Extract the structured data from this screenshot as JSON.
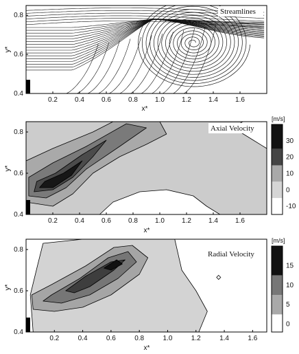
{
  "chart_data": [
    {
      "type": "streamlines",
      "title": "Streamlines",
      "xlabel": "x*",
      "ylabel": "y*",
      "xlim": [
        0.0,
        1.8
      ],
      "ylim": [
        0.4,
        0.85
      ],
      "xticks": [
        "0.2",
        "0.4",
        "0.6",
        "0.8",
        "1.0",
        "1.2",
        "1.4",
        "1.6"
      ],
      "yticks": [
        "0.4",
        "0.6",
        "0.8"
      ],
      "vortex_center": [
        1.25,
        0.66
      ],
      "jet_exit": {
        "x": 0.0,
        "y0": 0.4,
        "y1": 0.47
      }
    },
    {
      "type": "contour",
      "title": "Axial Velocity",
      "xlabel": "x*",
      "ylabel": "y*",
      "xlim": [
        0.0,
        1.8
      ],
      "ylim": [
        0.4,
        0.85
      ],
      "xticks": [
        "0.2",
        "0.4",
        "0.6",
        "0.8",
        "1.0",
        "1.2",
        "1.4",
        "1.6"
      ],
      "yticks": [
        "0.4",
        "0.6",
        "0.8"
      ],
      "colorbar": {
        "unit": "[m/s]",
        "ticks": [
          "30",
          "20",
          "10",
          "0",
          "-10"
        ],
        "range": [
          -15,
          40
        ]
      },
      "levels": [
        {
          "value": 0,
          "shade": "#cccccc",
          "points": [
            [
              0.0,
              0.4
            ],
            [
              0.0,
              0.85
            ],
            [
              1.8,
              0.85
            ],
            [
              1.8,
              0.4
            ]
          ]
        },
        {
          "value": 5,
          "shade": "#a9a9a9",
          "points": [
            [
              0.0,
              0.46
            ],
            [
              0.0,
              0.66
            ],
            [
              0.2,
              0.72
            ],
            [
              0.5,
              0.8
            ],
            [
              0.65,
              0.85
            ],
            [
              1.0,
              0.85
            ],
            [
              1.05,
              0.79
            ],
            [
              0.9,
              0.74
            ],
            [
              0.7,
              0.68
            ],
            [
              0.5,
              0.6
            ],
            [
              0.35,
              0.5
            ],
            [
              0.2,
              0.44
            ]
          ]
        },
        {
          "value": 15,
          "shade": "#7a7a7a",
          "points": [
            [
              0.02,
              0.49
            ],
            [
              0.02,
              0.58
            ],
            [
              0.2,
              0.65
            ],
            [
              0.45,
              0.73
            ],
            [
              0.75,
              0.84
            ],
            [
              0.9,
              0.82
            ],
            [
              0.7,
              0.73
            ],
            [
              0.45,
              0.62
            ],
            [
              0.3,
              0.53
            ],
            [
              0.15,
              0.48
            ]
          ]
        },
        {
          "value": 25,
          "shade": "#4b4b4b",
          "points": [
            [
              0.06,
              0.51
            ],
            [
              0.08,
              0.56
            ],
            [
              0.22,
              0.6
            ],
            [
              0.42,
              0.69
            ],
            [
              0.6,
              0.76
            ],
            [
              0.5,
              0.68
            ],
            [
              0.35,
              0.58
            ],
            [
              0.2,
              0.52
            ]
          ]
        },
        {
          "value": 35,
          "shade": "#171717",
          "points": [
            [
              0.1,
              0.53
            ],
            [
              0.14,
              0.56
            ],
            [
              0.28,
              0.6
            ],
            [
              0.42,
              0.66
            ],
            [
              0.34,
              0.59
            ],
            [
              0.2,
              0.53
            ]
          ]
        },
        {
          "value": -5,
          "shade": "#ffffff",
          "points": [
            [
              0.55,
              0.4
            ],
            [
              0.65,
              0.46
            ],
            [
              0.85,
              0.51
            ],
            [
              1.05,
              0.52
            ],
            [
              1.25,
              0.49
            ],
            [
              1.35,
              0.44
            ],
            [
              1.45,
              0.4
            ]
          ]
        },
        {
          "value": -5,
          "shade": "#ffffff",
          "points": [
            [
              1.55,
              0.82
            ],
            [
              1.62,
              0.85
            ],
            [
              1.8,
              0.85
            ],
            [
              1.8,
              0.72
            ],
            [
              1.7,
              0.76
            ]
          ]
        }
      ]
    },
    {
      "type": "contour",
      "title": "Radial Velocity",
      "xlabel": "x*",
      "ylabel": "y*",
      "xlim": [
        0.0,
        1.7
      ],
      "ylim": [
        0.4,
        0.85
      ],
      "xticks": [
        "0.2",
        "0.4",
        "0.6",
        "0.8",
        "1.0",
        "1.2",
        "1.4",
        "1.6"
      ],
      "yticks": [
        "0.4",
        "0.6",
        "0.8"
      ],
      "colorbar": {
        "unit": "[m/s]",
        "ticks": [
          "15",
          "10",
          "5",
          "0"
        ],
        "range": [
          -2,
          20
        ]
      },
      "levels": [
        {
          "value": 0,
          "shade": "#ffffff",
          "points": [
            [
              0.0,
              0.4
            ],
            [
              0.0,
              0.85
            ],
            [
              1.7,
              0.85
            ],
            [
              1.7,
              0.4
            ]
          ]
        },
        {
          "value": 2,
          "shade": "#d3d3d3",
          "points": [
            [
              0.05,
              0.4
            ],
            [
              0.03,
              0.58
            ],
            [
              0.08,
              0.72
            ],
            [
              0.12,
              0.83
            ],
            [
              0.4,
              0.85
            ],
            [
              1.05,
              0.85
            ],
            [
              1.1,
              0.7
            ],
            [
              1.2,
              0.6
            ],
            [
              1.28,
              0.5
            ],
            [
              1.22,
              0.4
            ]
          ]
        },
        {
          "value": 6,
          "shade": "#a5a5a5",
          "points": [
            [
              0.05,
              0.51
            ],
            [
              0.04,
              0.58
            ],
            [
              0.18,
              0.63
            ],
            [
              0.42,
              0.72
            ],
            [
              0.62,
              0.81
            ],
            [
              0.75,
              0.82
            ],
            [
              0.86,
              0.76
            ],
            [
              0.8,
              0.68
            ],
            [
              0.6,
              0.58
            ],
            [
              0.4,
              0.52
            ],
            [
              0.2,
              0.5
            ]
          ]
        },
        {
          "value": 10,
          "shade": "#767676",
          "points": [
            [
              0.12,
              0.55
            ],
            [
              0.18,
              0.58
            ],
            [
              0.38,
              0.66
            ],
            [
              0.58,
              0.76
            ],
            [
              0.72,
              0.79
            ],
            [
              0.78,
              0.74
            ],
            [
              0.65,
              0.66
            ],
            [
              0.45,
              0.58
            ],
            [
              0.25,
              0.54
            ]
          ]
        },
        {
          "value": 14,
          "shade": "#3e3e3e",
          "points": [
            [
              0.28,
              0.6
            ],
            [
              0.42,
              0.67
            ],
            [
              0.6,
              0.74
            ],
            [
              0.7,
              0.75
            ],
            [
              0.62,
              0.7
            ],
            [
              0.45,
              0.62
            ],
            [
              0.34,
              0.59
            ]
          ]
        },
        {
          "value": 18,
          "shade": "#111111",
          "points": [
            [
              0.55,
              0.71
            ],
            [
              0.64,
              0.75
            ],
            [
              0.68,
              0.73
            ],
            [
              0.6,
              0.7
            ]
          ]
        }
      ]
    }
  ]
}
